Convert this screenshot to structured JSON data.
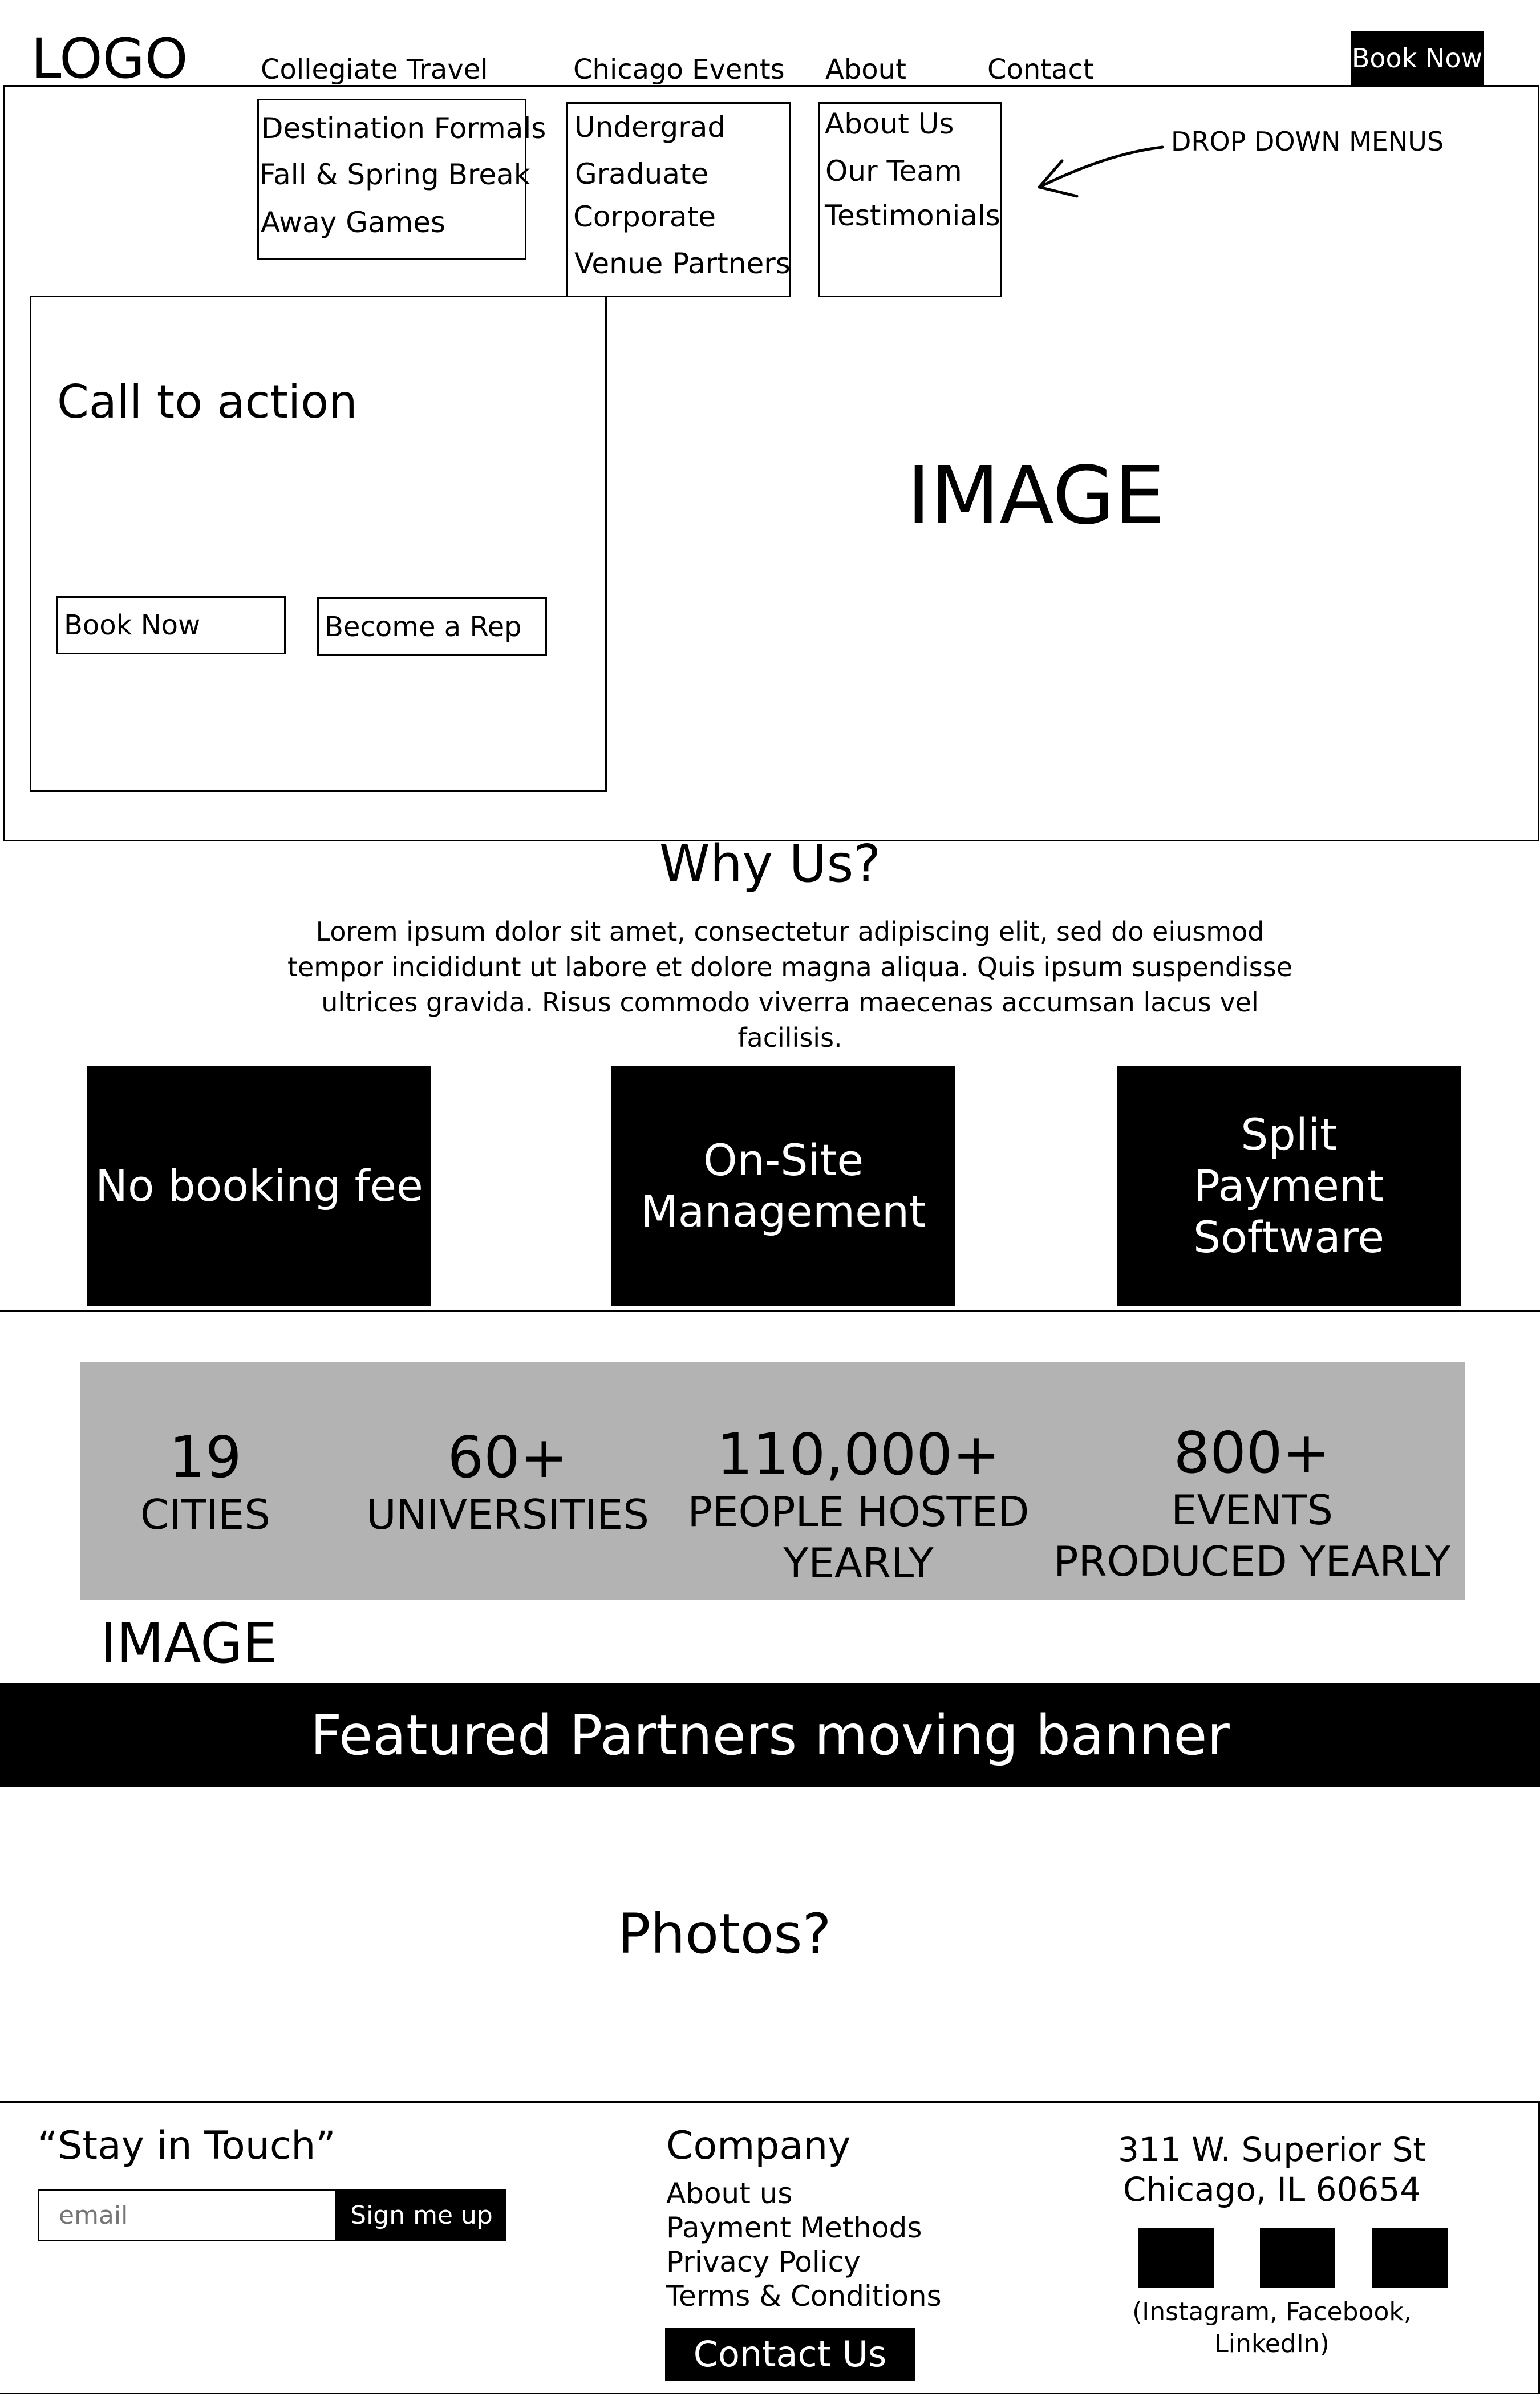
{
  "header": {
    "logo": "LOGO",
    "nav": [
      {
        "label": "Collegiate Travel"
      },
      {
        "label": "Chicago Events"
      },
      {
        "label": "About"
      },
      {
        "label": "Contact"
      }
    ],
    "book_now": "Book Now"
  },
  "dropdowns": {
    "collegiate_travel": [
      "Destination Formals",
      "Fall & Spring Break",
      "Away Games"
    ],
    "chicago_events": [
      "Undergrad",
      "Graduate",
      "Corporate",
      "Venue Partners"
    ],
    "about": [
      "About Us",
      "Our Team",
      "Testimonials"
    ],
    "annotation": "DROP DOWN MENUS"
  },
  "hero": {
    "cta_title": "Call to action",
    "book_now": "Book Now",
    "become_rep": "Become a Rep",
    "image_label": "IMAGE"
  },
  "why_us": {
    "title": "Why Us?",
    "body": "Lorem ipsum dolor sit amet, consectetur adipiscing elit, sed do eiusmod tempor incididunt ut labore et dolore magna aliqua. Quis ipsum suspendisse ultrices gravida. Risus commodo viverra maecenas accumsan lacus vel facilisis."
  },
  "features": [
    "No booking fee",
    "On-Site Management",
    "Split Payment Software"
  ],
  "stats": [
    {
      "number": "19",
      "label": "CITIES"
    },
    {
      "number": "60+",
      "label": "UNIVERSITIES"
    },
    {
      "number": "110,000+",
      "label": "PEOPLE HOSTED YEARLY"
    },
    {
      "number": "800+",
      "label": "EVENTS PRODUCED YEARLY"
    }
  ],
  "stats_image_label": "IMAGE",
  "partners_banner": "Featured Partners moving banner",
  "photos_label": "Photos?",
  "footer": {
    "stay_in_touch": "“Stay in Touch”",
    "email_placeholder": "email",
    "signup_button": "Sign me up",
    "company_title": "Company",
    "company_links": [
      "About us",
      "Payment Methods",
      "Privacy Policy",
      "Terms & Conditions"
    ],
    "contact_button": "Contact Us",
    "address_line1": "311 W. Superior St",
    "address_line2": "Chicago, IL 60654",
    "social_caption": "(Instagram, Facebook, LinkedIn)"
  },
  "colors": {
    "primary": "#000000",
    "background": "#ffffff",
    "stats_band": "#b3b3b3"
  }
}
